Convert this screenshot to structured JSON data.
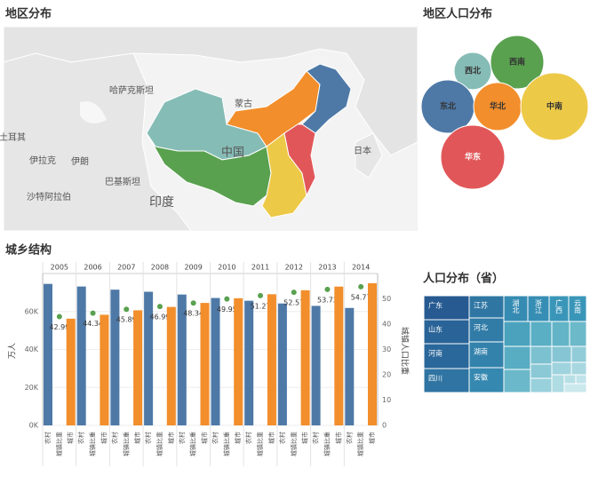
{
  "map": {
    "title": "地区分布",
    "labels": [
      "哈萨克斯坦",
      "蒙古",
      "中国",
      "日本",
      "土耳其",
      "伊拉克",
      "伊朗",
      "巴基斯坦",
      "沙特阿拉伯",
      "印度"
    ]
  },
  "chart_data": [
    {
      "type": "bubble",
      "title": "地区人口分布",
      "categories": [
        "西北",
        "西南",
        "东北",
        "华北",
        "中南",
        "华东"
      ],
      "values": [
        4.41,
        9,
        9,
        7.29,
        14.44,
        12.96
      ],
      "colors": [
        "#86bcb6",
        "#59a14f",
        "#4e79a7",
        "#f28e2b",
        "#edc948",
        "#e15759"
      ]
    },
    {
      "type": "bar",
      "title": "城乡结构",
      "categories": [
        "2005",
        "2006",
        "2007",
        "2008",
        "2009",
        "2010",
        "2011",
        "2012",
        "2013",
        "2014"
      ],
      "series": [
        {
          "name": "农村",
          "color": "#4e79a7",
          "values": [
            74544,
            73160,
            71496,
            70399,
            68938,
            67113,
            65656,
            64222,
            62961,
            61866
          ]
        },
        {
          "name": "城镇比重",
          "color": "#59a14f",
          "axis": "y2",
          "values": [
            42.99,
            44.34,
            45.89,
            46.99,
            48.34,
            49.95,
            51.27,
            52.57,
            53.73,
            54.77
          ]
        },
        {
          "name": "城市",
          "color": "#f28e2b",
          "values": [
            56212,
            58288,
            60633,
            62403,
            64512,
            66978,
            69079,
            71182,
            73111,
            74916
          ]
        }
      ],
      "ylabel": "万人",
      "y2label": "城镇人口比重",
      "ylim": [
        0,
        80000
      ],
      "yticks": [
        {
          "value": 0,
          "label": "0K"
        },
        {
          "value": 20000,
          "label": "20K"
        },
        {
          "value": 40000,
          "label": "40K"
        },
        {
          "value": 60000,
          "label": "60K"
        }
      ],
      "y2lim": [
        0,
        60
      ],
      "y2ticks": [
        0,
        10,
        20,
        30,
        40,
        50
      ],
      "grid": true
    },
    {
      "type": "treemap",
      "title": "人口分布（省）",
      "categories": [
        "广东",
        "山东",
        "河南",
        "四川",
        "江苏",
        "河北",
        "湖南",
        "安徽",
        "湖北",
        "浙江",
        "广西",
        "云南"
      ],
      "values": [
        10724,
        9789,
        9436,
        8140,
        7960,
        7384,
        6737,
        6083,
        5816,
        5508,
        4754,
        4714
      ]
    }
  ]
}
